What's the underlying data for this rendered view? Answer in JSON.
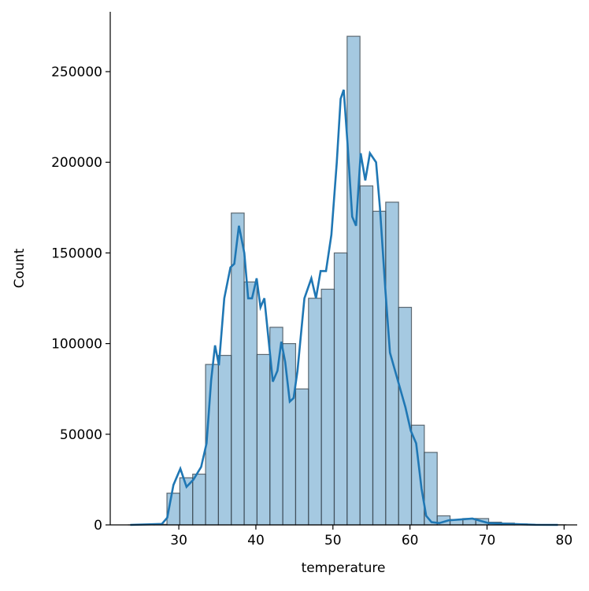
{
  "chart_data": {
    "type": "histogram",
    "xlabel": "temperature",
    "ylabel": "Count",
    "bins": [
      23.45,
      25.12,
      26.79,
      28.46,
      30.13,
      31.8,
      33.47,
      35.14,
      36.81,
      38.48,
      40.15,
      41.82,
      43.49,
      45.16,
      46.83,
      48.5,
      50.17,
      51.84,
      53.51,
      55.18,
      56.85,
      58.52,
      60.19,
      61.86,
      63.53,
      65.2,
      66.87,
      68.54,
      70.21,
      71.88,
      73.55,
      75.22,
      76.89,
      78.56,
      80.23
    ],
    "values": [
      10,
      50,
      300,
      17500,
      26000,
      28000,
      88500,
      93500,
      172000,
      134000,
      94000,
      109000,
      100000,
      75000,
      125000,
      130000,
      150000,
      269500,
      187000,
      173000,
      178000,
      120000,
      55000,
      40000,
      5000,
      3000,
      3500,
      3500,
      1500,
      1000,
      500,
      200,
      100,
      50
    ],
    "color": "#1f77b4",
    "kde": {
      "x": [
        23.7,
        27.8,
        28.5,
        29.3,
        30.2,
        31,
        31.9,
        32.9,
        33.6,
        34.2,
        34.7,
        35.2,
        35.9,
        36.7,
        37.2,
        37.8,
        38.5,
        39,
        39.5,
        40.1,
        40.6,
        41.1,
        41.7,
        42.2,
        42.8,
        43.3,
        43.8,
        44.4,
        44.9,
        45.4,
        46.3,
        47.2,
        47.8,
        48.4,
        49.1,
        49.8,
        50.5,
        51,
        51.4,
        51.9,
        52.5,
        53,
        53.6,
        54.2,
        54.8,
        55.6,
        56.1,
        56.8,
        57.4,
        58.4,
        59.4,
        60.1,
        60.8,
        61.5,
        62.1,
        62.8,
        63.8,
        65,
        66.6,
        68.1,
        70.2,
        73.2,
        76.3,
        79.2
      ],
      "values": [
        0,
        500,
        4000,
        22000,
        31000,
        21000,
        25000,
        32000,
        45000,
        80000,
        99000,
        88000,
        125000,
        142000,
        144000,
        165000,
        150000,
        125000,
        125000,
        136000,
        120000,
        125000,
        100000,
        79000,
        85000,
        101000,
        90000,
        68000,
        70000,
        85000,
        125000,
        136000,
        125000,
        140000,
        140000,
        160000,
        200000,
        235000,
        240000,
        210000,
        170000,
        165000,
        205000,
        190000,
        205000,
        200000,
        175000,
        130000,
        95000,
        80000,
        65000,
        52000,
        45000,
        20000,
        5000,
        1500,
        1000,
        2500,
        3000,
        3500,
        1000,
        500,
        50,
        0
      ],
      "color": "#1f77b4"
    },
    "xlim": [
      21.1,
      81.7
    ],
    "ylim": [
      0,
      283000
    ],
    "xticks": [
      30,
      40,
      50,
      60,
      70,
      80
    ],
    "yticks": [
      0,
      50000,
      100000,
      150000,
      200000,
      250000
    ]
  }
}
